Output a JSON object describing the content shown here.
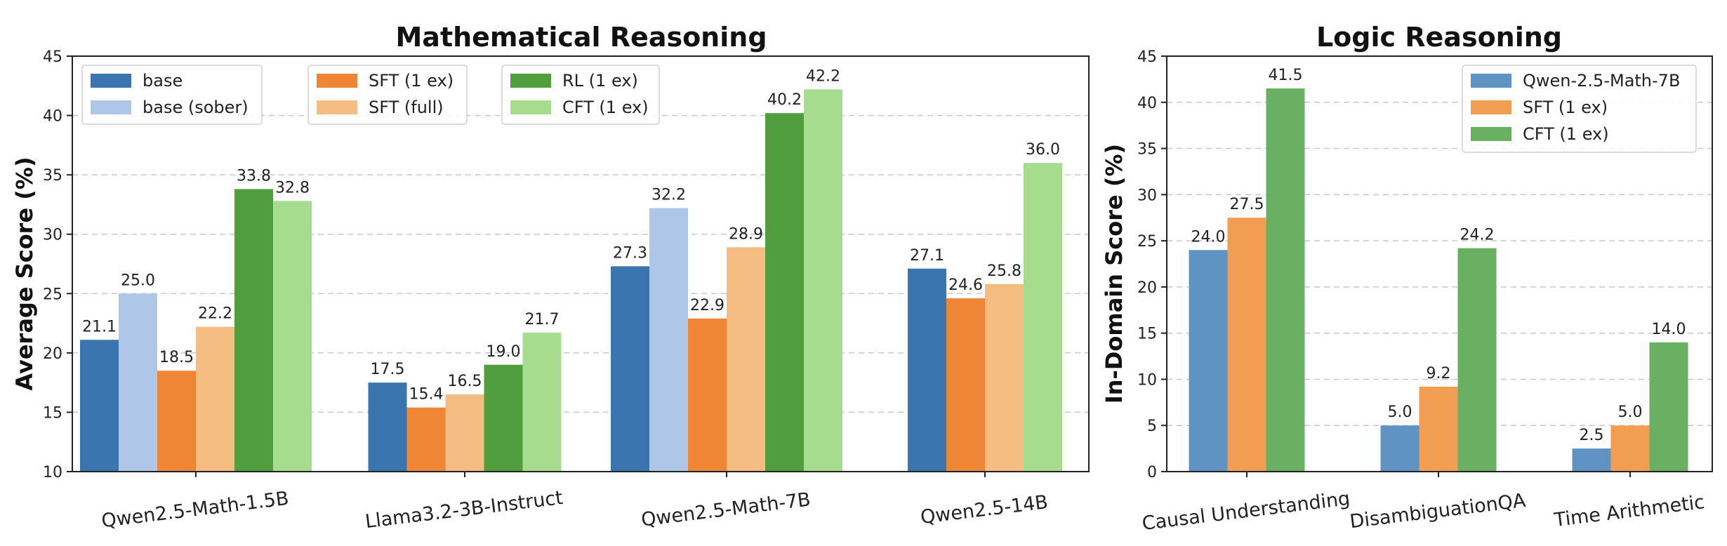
{
  "chart_data": [
    {
      "type": "bar",
      "title": "Mathematical Reasoning",
      "xlabel": "",
      "ylabel": "Average Score (%)",
      "ylim": [
        10,
        45
      ],
      "yticks": [
        10,
        15,
        20,
        25,
        30,
        35,
        40,
        45
      ],
      "grid": true,
      "legend_position": "top-left",
      "legend_columns": 3,
      "categories": [
        "Qwen2.5-Math-1.5B",
        "Llama3.2-3B-Instruct",
        "Qwen2.5-Math-7B",
        "Qwen2.5-14B"
      ],
      "series": [
        {
          "name": "base",
          "color": "#3a75b0",
          "values": [
            21.1,
            17.5,
            27.3,
            27.1
          ]
        },
        {
          "name": "base (sober)",
          "color": "#aec6e8",
          "values": [
            25.0,
            null,
            32.2,
            null
          ]
        },
        {
          "name": "SFT (1 ex)",
          "color": "#ef8636",
          "values": [
            18.5,
            15.4,
            22.9,
            24.6
          ]
        },
        {
          "name": "SFT (full)",
          "color": "#f5bd82",
          "values": [
            22.2,
            16.5,
            28.9,
            25.8
          ]
        },
        {
          "name": "RL (1 ex)",
          "color": "#519e3e",
          "values": [
            33.8,
            19.0,
            40.2,
            null
          ]
        },
        {
          "name": "CFT (1 ex)",
          "color": "#a5dc8e",
          "values": [
            32.8,
            21.7,
            42.2,
            36.0
          ]
        }
      ]
    },
    {
      "type": "bar",
      "title": "Logic Reasoning",
      "xlabel": "",
      "ylabel": "In-Domain Score (%)",
      "ylim": [
        0,
        45
      ],
      "yticks": [
        0,
        5,
        10,
        15,
        20,
        25,
        30,
        35,
        40,
        45
      ],
      "grid": true,
      "legend_position": "top-right",
      "legend_columns": 1,
      "categories": [
        "Causal Understanding",
        "DisambiguationQA",
        "Time Arithmetic"
      ],
      "series": [
        {
          "name": "Qwen-2.5-Math-7B",
          "color": "#5f93c4",
          "values": [
            24.0,
            5.0,
            2.5
          ]
        },
        {
          "name": "SFT (1 ex)",
          "color": "#f29e52",
          "values": [
            27.5,
            9.2,
            5.0
          ]
        },
        {
          "name": "CFT (1 ex)",
          "color": "#6ab062",
          "values": [
            41.5,
            24.2,
            14.0
          ]
        }
      ]
    }
  ]
}
